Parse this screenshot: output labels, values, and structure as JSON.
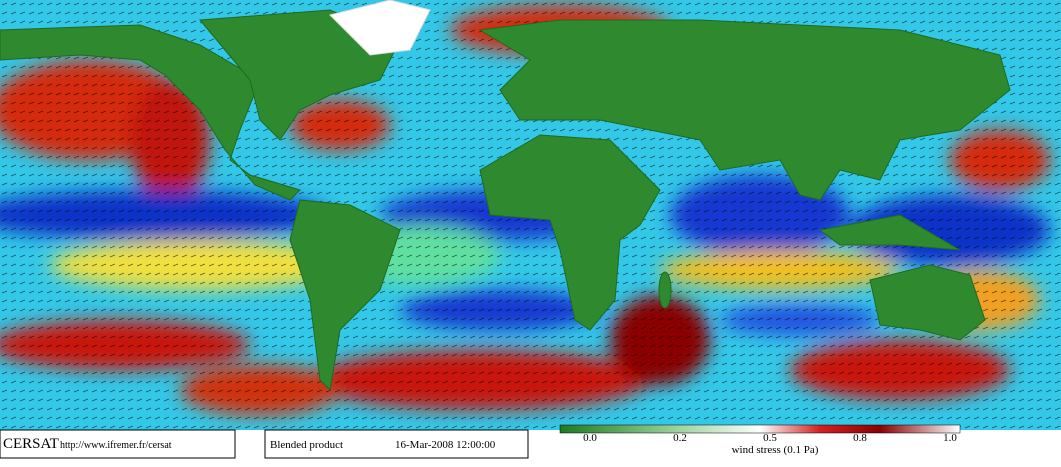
{
  "logo": "CERSAT",
  "url": "http://www.ifremer.fr/cersat",
  "product": "Blended product",
  "timestamp": "16-Mar-2008 12:00:00",
  "colorbar": {
    "ticks": [
      "0.0",
      "0.2",
      "0.5",
      "0.8",
      "1.0"
    ],
    "label": "wind stress (0.1 Pa)"
  }
}
